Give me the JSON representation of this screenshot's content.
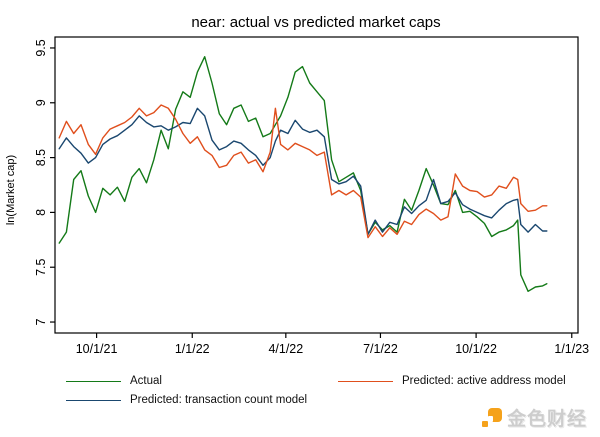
{
  "chart_data": {
    "type": "line",
    "title": "near: actual vs predicted market caps",
    "xlabel": "",
    "ylabel": "ln(Market cap)",
    "xlim": [
      "2021-08-22",
      "2023-01-07"
    ],
    "ylim": [
      6.9,
      9.6
    ],
    "grid": false,
    "legend_position": "bottom",
    "x_ticks": [
      {
        "date": "2021-10-01",
        "label": "10/1/21"
      },
      {
        "date": "2022-01-01",
        "label": "1/1/22"
      },
      {
        "date": "2022-04-01",
        "label": "4/1/22"
      },
      {
        "date": "2022-07-01",
        "label": "7/1/22"
      },
      {
        "date": "2022-10-01",
        "label": "10/1/22"
      },
      {
        "date": "2023-01-01",
        "label": "1/1/23"
      }
    ],
    "y_ticks": [
      {
        "value": 7,
        "label": "7"
      },
      {
        "value": 7.5,
        "label": "7.5"
      },
      {
        "value": 8,
        "label": "8"
      },
      {
        "value": 8.5,
        "label": "8.5"
      },
      {
        "value": 9,
        "label": "9"
      },
      {
        "value": 9.5,
        "label": "9.5"
      }
    ],
    "x": [
      "2021-08-26",
      "2021-09-02",
      "2021-09-09",
      "2021-09-16",
      "2021-09-23",
      "2021-09-30",
      "2021-10-07",
      "2021-10-14",
      "2021-10-21",
      "2021-10-28",
      "2021-11-04",
      "2021-11-11",
      "2021-11-18",
      "2021-11-25",
      "2021-12-02",
      "2021-12-09",
      "2021-12-16",
      "2021-12-23",
      "2021-12-30",
      "2022-01-06",
      "2022-01-13",
      "2022-01-20",
      "2022-01-27",
      "2022-02-03",
      "2022-02-10",
      "2022-02-17",
      "2022-02-24",
      "2022-03-03",
      "2022-03-10",
      "2022-03-17",
      "2022-03-22",
      "2022-03-27",
      "2022-04-03",
      "2022-04-10",
      "2022-04-17",
      "2022-04-24",
      "2022-05-01",
      "2022-05-08",
      "2022-05-15",
      "2022-05-22",
      "2022-05-29",
      "2022-06-05",
      "2022-06-12",
      "2022-06-19",
      "2022-06-26",
      "2022-07-03",
      "2022-07-10",
      "2022-07-17",
      "2022-07-24",
      "2022-07-31",
      "2022-08-07",
      "2022-08-14",
      "2022-08-21",
      "2022-08-28",
      "2022-09-04",
      "2022-09-11",
      "2022-09-18",
      "2022-09-25",
      "2022-10-02",
      "2022-10-09",
      "2022-10-16",
      "2022-10-23",
      "2022-10-30",
      "2022-11-06",
      "2022-11-10",
      "2022-11-13",
      "2022-11-20",
      "2022-11-27",
      "2022-12-04",
      "2022-12-08"
    ],
    "series": [
      {
        "name": "Actual",
        "color": "#147a18",
        "values": [
          7.72,
          7.82,
          8.3,
          8.38,
          8.15,
          8.0,
          8.22,
          8.16,
          8.23,
          8.1,
          8.32,
          8.4,
          8.27,
          8.48,
          8.75,
          8.58,
          8.94,
          9.1,
          9.05,
          9.28,
          9.42,
          9.18,
          8.9,
          8.8,
          8.95,
          8.98,
          8.83,
          8.86,
          8.69,
          8.72,
          8.8,
          8.88,
          9.05,
          9.28,
          9.33,
          9.18,
          9.1,
          9.02,
          8.48,
          8.28,
          8.32,
          8.36,
          8.2,
          7.8,
          7.91,
          7.84,
          7.88,
          7.82,
          8.12,
          8.02,
          8.2,
          8.4,
          8.25,
          8.08,
          8.07,
          8.2,
          8.0,
          8.01,
          7.96,
          7.9,
          7.78,
          7.82,
          7.84,
          7.88,
          7.93,
          7.43,
          7.28,
          7.32,
          7.33,
          7.35
        ]
      },
      {
        "name": "Predicted: transaction count model",
        "color": "#1a476f",
        "values": [
          8.58,
          8.68,
          8.6,
          8.54,
          8.45,
          8.5,
          8.62,
          8.67,
          8.7,
          8.75,
          8.8,
          8.88,
          8.82,
          8.78,
          8.79,
          8.75,
          8.78,
          8.82,
          8.81,
          8.95,
          8.88,
          8.66,
          8.57,
          8.6,
          8.65,
          8.63,
          8.57,
          8.52,
          8.43,
          8.5,
          8.65,
          8.75,
          8.72,
          8.84,
          8.76,
          8.73,
          8.75,
          8.69,
          8.3,
          8.26,
          8.28,
          8.33,
          8.24,
          7.8,
          7.93,
          7.82,
          7.91,
          7.89,
          8.05,
          7.99,
          8.06,
          8.11,
          8.3,
          8.08,
          8.1,
          8.18,
          8.07,
          8.03,
          8.0,
          7.97,
          7.95,
          8.02,
          8.08,
          8.11,
          8.12,
          7.89,
          7.82,
          7.89,
          7.83,
          7.83
        ]
      },
      {
        "name": "Predicted: active address model",
        "color": "#e04f1d",
        "values": [
          8.68,
          8.83,
          8.72,
          8.8,
          8.62,
          8.53,
          8.68,
          8.76,
          8.79,
          8.82,
          8.87,
          8.95,
          8.88,
          8.91,
          8.98,
          8.95,
          8.85,
          8.72,
          8.63,
          8.69,
          8.57,
          8.52,
          8.41,
          8.43,
          8.52,
          8.55,
          8.45,
          8.48,
          8.37,
          8.55,
          8.95,
          8.62,
          8.57,
          8.63,
          8.6,
          8.57,
          8.52,
          8.55,
          8.16,
          8.2,
          8.16,
          8.2,
          8.14,
          7.77,
          7.87,
          7.78,
          7.86,
          7.8,
          7.92,
          7.89,
          7.98,
          8.03,
          7.99,
          7.93,
          7.96,
          8.35,
          8.24,
          8.2,
          8.19,
          8.14,
          8.16,
          8.24,
          8.22,
          8.32,
          8.3,
          8.08,
          8.01,
          8.02,
          8.06,
          8.06
        ]
      }
    ]
  },
  "watermark": {
    "text": "金色财经",
    "logo_color": "#f5a21b",
    "text_color": "#cdcdcd"
  }
}
